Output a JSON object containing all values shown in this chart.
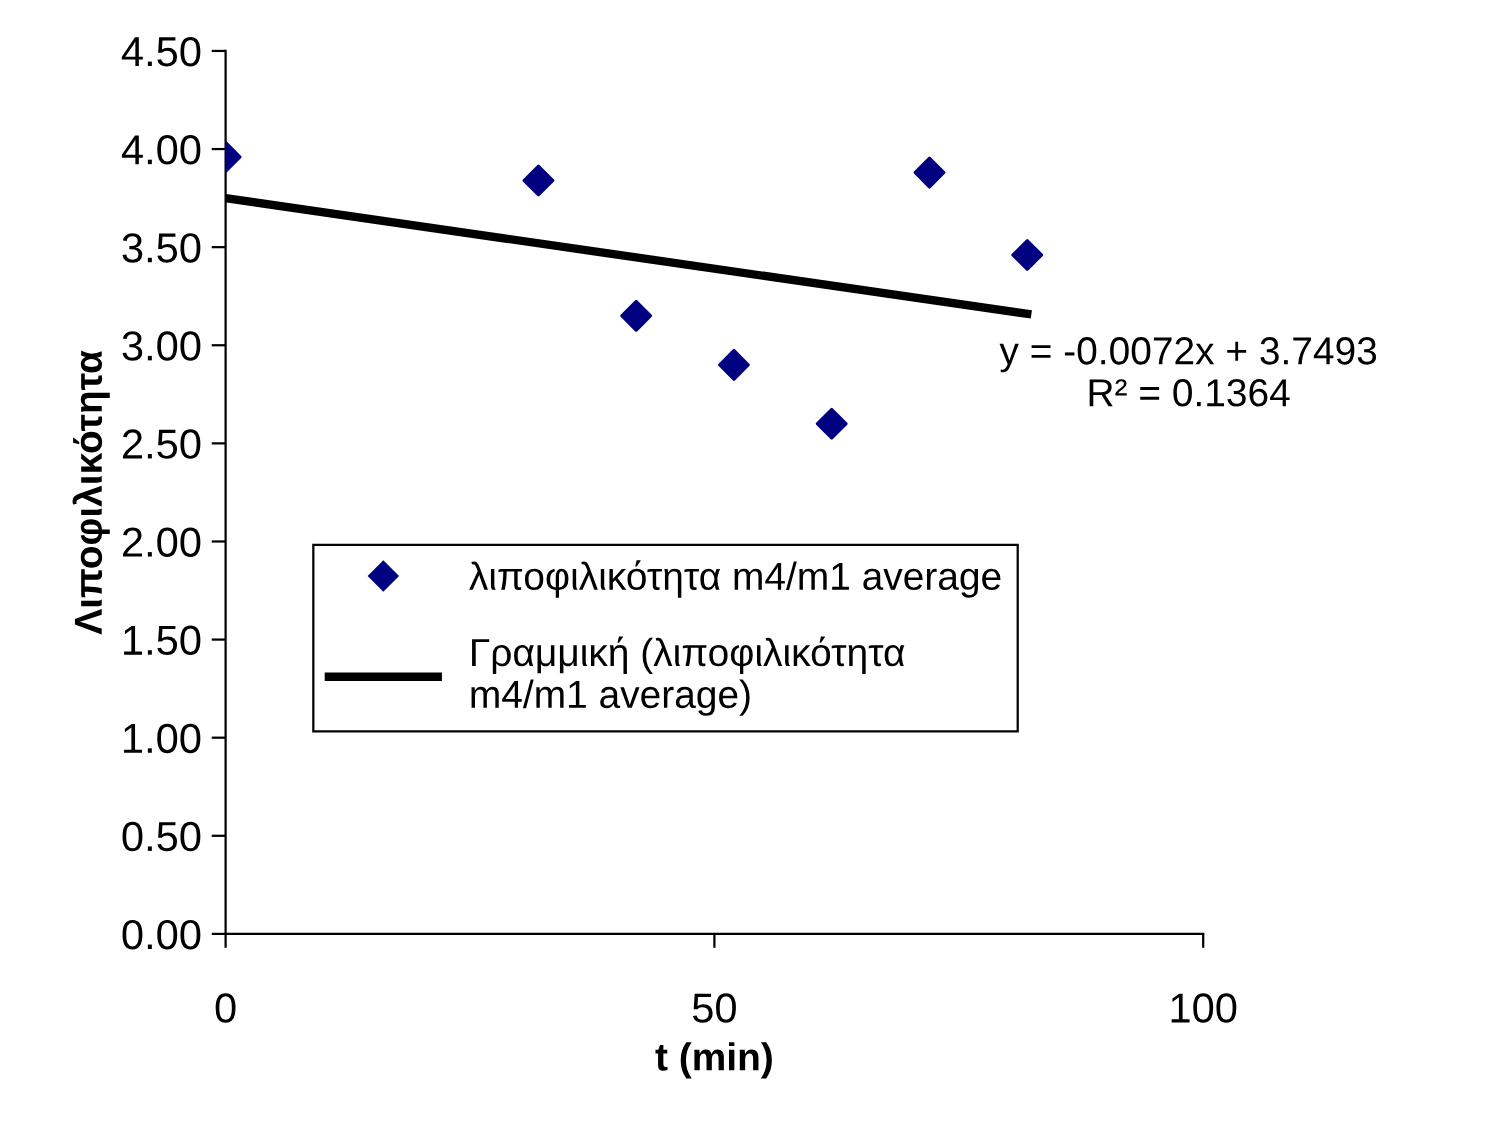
{
  "chart_data": {
    "type": "scatter",
    "xlabel": "t (min)",
    "ylabel": "Λιποφιλικότητα",
    "series": [
      {
        "name": "λιποφιλικότητα m4/m1 average",
        "color": "#000080",
        "marker": "diamond",
        "x": [
          0,
          32,
          42,
          52,
          62,
          72,
          82
        ],
        "values": [
          3.96,
          3.84,
          3.15,
          2.9,
          2.6,
          3.88,
          3.46
        ]
      },
      {
        "name": "Γραμμική (λιποφιλικότητα\nm4/m1 average)",
        "type": "line",
        "color": "#000000",
        "marker": "none",
        "line_style": "solid",
        "x": [
          0,
          82
        ],
        "values": [
          3.75,
          3.16
        ]
      }
    ],
    "annotations": [
      {
        "text": "y = -0.0072x + 3.7493\nR² = 0.1364",
        "x": 82,
        "y": 3.16
      }
    ],
    "xlim": [
      0,
      100
    ],
    "xticks": [
      0,
      50,
      100
    ],
    "ylim": [
      0,
      4.5
    ],
    "yticks": [
      {
        "value": 0,
        "label": "0.00"
      },
      {
        "value": 0.5,
        "label": "0.50"
      },
      {
        "value": 1,
        "label": "1.00"
      },
      {
        "value": 1.5,
        "label": "1.50"
      },
      {
        "value": 2,
        "label": "2.00"
      },
      {
        "value": 2.5,
        "label": "2.50"
      },
      {
        "value": 3,
        "label": "3.00"
      },
      {
        "value": 3.5,
        "label": "3.50"
      },
      {
        "value": 4,
        "label": "4.00"
      },
      {
        "value": 4.5,
        "label": "4.50"
      }
    ],
    "grid": false,
    "legend": "center"
  }
}
